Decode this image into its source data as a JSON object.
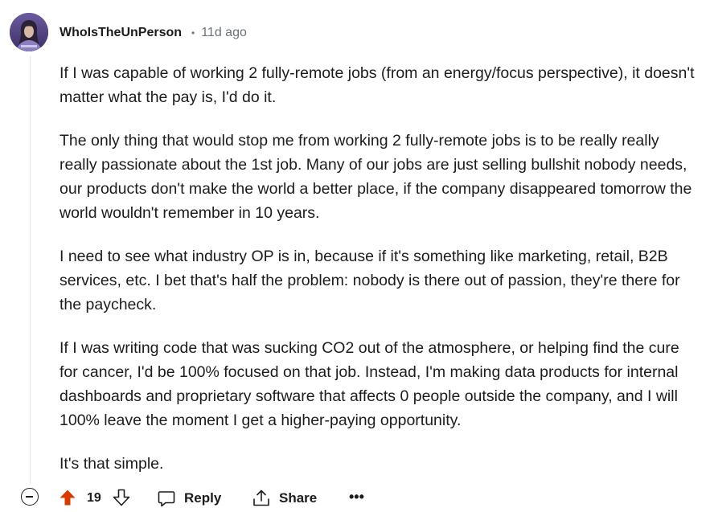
{
  "comment": {
    "username": "WhoIsTheUnPerson",
    "separator": "•",
    "timestamp": "11d ago",
    "paragraphs": [
      "If I was capable of working 2 fully-remote jobs (from an energy/focus perspective), it doesn't matter what the pay is, I'd do it.",
      "The only thing that would stop me from working 2 fully-remote jobs is to be really really really passionate about the 1st job. Many of our jobs are just selling bullshit nobody needs, our products don't make the world a better place, if the company disappeared tomorrow the world wouldn't remember in 10 years.",
      "I need to see what industry OP is in, because if it's something like marketing, retail, B2B services, etc. I bet that's half the problem: nobody is there out of passion, they're there for the paycheck.",
      "If I was writing code that was sucking CO2 out of the atmosphere, or helping find the cure for cancer, I'd be 100% focused on that job. Instead, I'm making data products for internal dashboards and proprietary software that affects 0 people outside the company, and I will 100% leave the moment I get a higher-paying opportunity.",
      "It's that simple."
    ]
  },
  "actions": {
    "score": "19",
    "reply_label": "Reply",
    "share_label": "Share",
    "more_label": "•••"
  },
  "colors": {
    "upvote_active": "#d93a00",
    "muted_text": "#6a7177",
    "thread_line": "#e1e4e7"
  },
  "icons": [
    "collapse-icon",
    "upvote-icon",
    "downvote-icon",
    "reply-icon",
    "share-icon",
    "more-icon"
  ]
}
